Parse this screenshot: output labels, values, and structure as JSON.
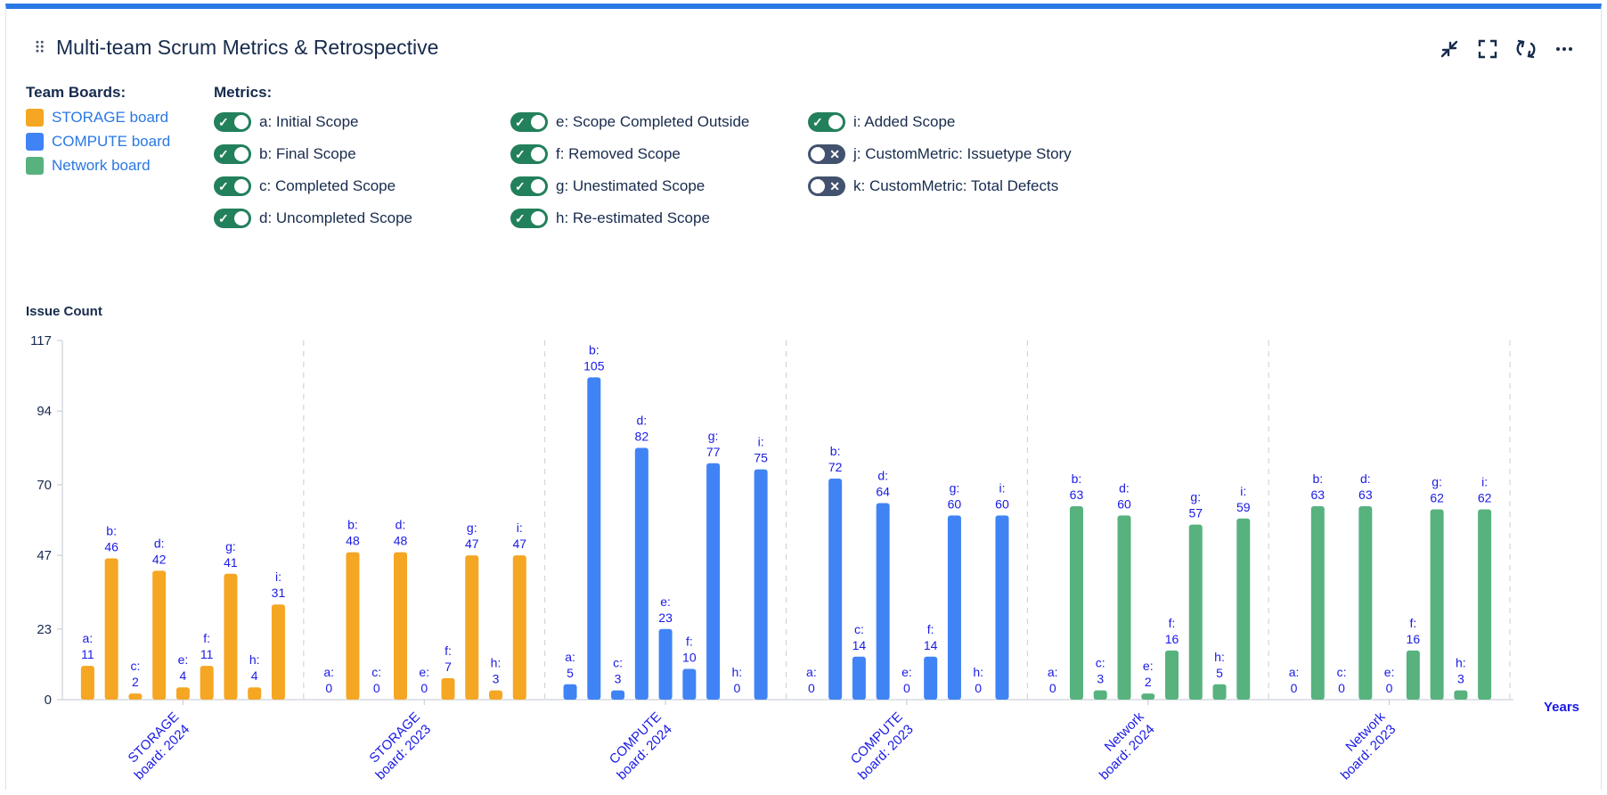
{
  "header": {
    "title": "Multi-team Scrum Metrics & Retrospective",
    "buttons": [
      "collapse-icon",
      "fullscreen-icon",
      "refresh-icon",
      "more-icon"
    ]
  },
  "legend": {
    "title": "Team Boards:",
    "items": [
      {
        "label": "STORAGE board",
        "color": "#f5a623"
      },
      {
        "label": "COMPUTE board",
        "color": "#4083f5"
      },
      {
        "label": "Network board",
        "color": "#57b27e"
      }
    ]
  },
  "metrics": {
    "title": "Metrics:",
    "items": [
      {
        "label": "a: Initial Scope",
        "on": true
      },
      {
        "label": "b: Final Scope",
        "on": true
      },
      {
        "label": "c: Completed Scope",
        "on": true
      },
      {
        "label": "d: Uncompleted Scope",
        "on": true
      },
      {
        "label": "e: Scope Completed Outside",
        "on": true
      },
      {
        "label": "f: Removed Scope",
        "on": true
      },
      {
        "label": "g: Unestimated Scope",
        "on": true
      },
      {
        "label": "h: Re-estimated Scope",
        "on": true
      },
      {
        "label": "i: Added Scope",
        "on": true
      },
      {
        "label": "j: CustomMetric: Issuetype Story",
        "on": false
      },
      {
        "label": "k: CustomMetric: Total Defects",
        "on": false
      }
    ]
  },
  "chart_data": {
    "type": "bar",
    "ylabel": "Issue Count",
    "xlabel": "Years",
    "ylim": [
      0,
      117
    ],
    "yticks": [
      0,
      23,
      47,
      70,
      94,
      117
    ],
    "grid": "vertical-dashed",
    "letters": [
      "a",
      "b",
      "c",
      "d",
      "e",
      "f",
      "g",
      "h",
      "i"
    ],
    "groups": [
      {
        "label": "STORAGE board: 2024",
        "board": "STORAGE board",
        "values": [
          11,
          46,
          2,
          42,
          4,
          11,
          41,
          4,
          31
        ]
      },
      {
        "label": "STORAGE board: 2023",
        "board": "STORAGE board",
        "values": [
          0,
          48,
          0,
          48,
          0,
          7,
          47,
          3,
          47
        ]
      },
      {
        "label": "COMPUTE board: 2024",
        "board": "COMPUTE board",
        "values": [
          5,
          105,
          3,
          82,
          23,
          10,
          77,
          0,
          75
        ]
      },
      {
        "label": "COMPUTE board: 2023",
        "board": "COMPUTE board",
        "values": [
          0,
          72,
          14,
          64,
          0,
          14,
          60,
          0,
          60
        ]
      },
      {
        "label": "Network board: 2024",
        "board": "Network board",
        "values": [
          0,
          63,
          3,
          60,
          2,
          16,
          57,
          5,
          59
        ]
      },
      {
        "label": "Network board: 2023",
        "board": "Network board",
        "values": [
          0,
          63,
          0,
          63,
          0,
          16,
          62,
          3,
          62
        ]
      }
    ],
    "label_color": "#1a1ae6"
  }
}
